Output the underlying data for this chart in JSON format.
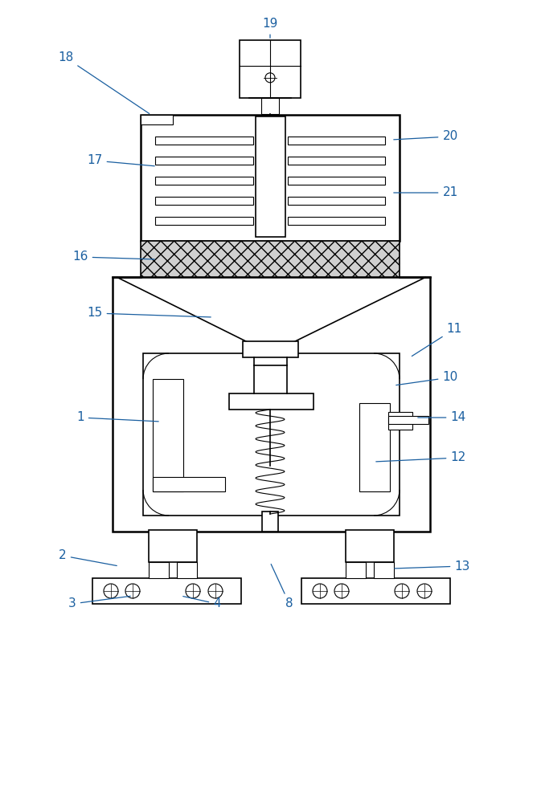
{
  "background_color": "#ffffff",
  "line_color": "#000000",
  "label_color": "#1a5fa0",
  "figure_width": 6.73,
  "figure_height": 10.0
}
